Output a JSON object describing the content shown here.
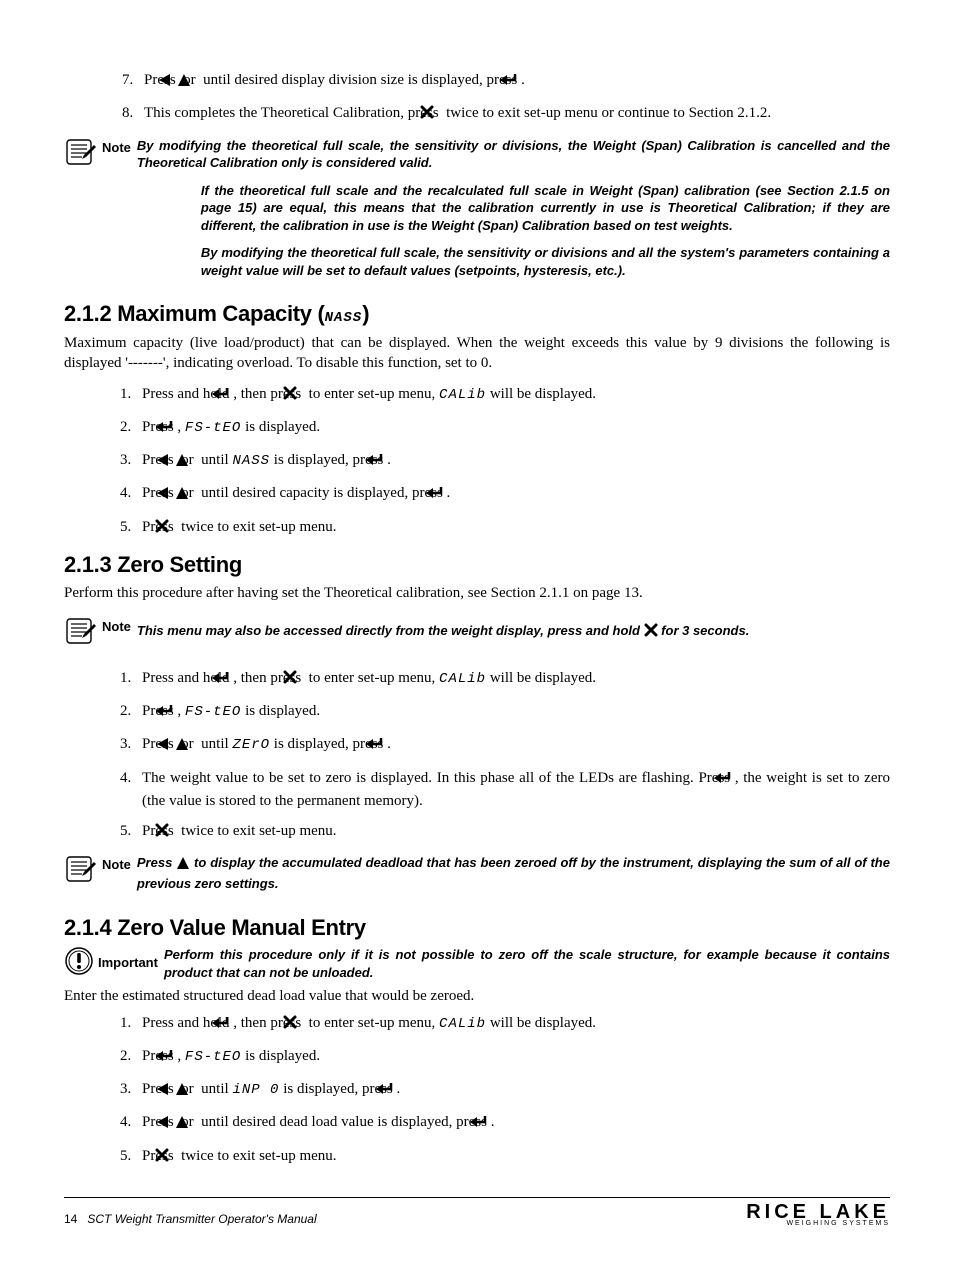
{
  "top_steps": [
    {
      "num": "7.",
      "parts": [
        "Press ",
        {
          "icon": "left"
        },
        " or ",
        {
          "icon": "up"
        },
        " until desired display division size is displayed, press ",
        {
          "icon": "enter"
        },
        "."
      ]
    },
    {
      "num": "8.",
      "parts": [
        "This completes the Theoretical Calibration, press ",
        {
          "icon": "x"
        },
        " twice to exit set-up menu or continue to Section 2.1.2."
      ]
    }
  ],
  "top_note_label": "Note",
  "top_note_paras": [
    "By modifying the theoretical full scale, the sensitivity or divisions,  the Weight (Span) Calibration is cancelled and the Theoretical Calibration only is considered valid.",
    "If the theoretical full scale and the recalculated full scale in Weight (Span) calibration (see Section 2.1.5 on page 15) are equal, this means that the calibration currently in use is Theoretical Calibration; if they are different, the calibration in use is the Weight (Span) Calibration based on test weights.",
    "By modifying the theoretical full scale, the sensitivity or divisions and all the system's parameters containing a weight value will be set to default values (setpoints, hysteresis, etc.)."
  ],
  "s212_heading_parts": [
    "2.1.2  Maximum Capacity (",
    {
      "seg": "NASS"
    },
    ")"
  ],
  "s212_body": "Maximum capacity (live load/product) that can be displayed. When the weight exceeds this value by 9 divisions the following is displayed '-------', indicating overload. To disable this function, set to 0.",
  "s212_steps": [
    {
      "num": "1.",
      "parts": [
        "Press and hold ",
        {
          "icon": "enter"
        },
        ", then press ",
        {
          "icon": "x"
        },
        " to enter set-up menu, ",
        {
          "seg": "CALib"
        },
        " will be displayed."
      ]
    },
    {
      "num": "2.",
      "parts": [
        "Press ",
        {
          "icon": "enter"
        },
        ", ",
        {
          "seg": "FS-tEO"
        },
        " is displayed."
      ]
    },
    {
      "num": "3.",
      "parts": [
        "Press ",
        {
          "icon": "left"
        },
        " or ",
        {
          "icon": "up"
        },
        " until ",
        {
          "seg": "NASS"
        },
        " is displayed, press ",
        {
          "icon": "enter"
        },
        "."
      ]
    },
    {
      "num": "4.",
      "parts": [
        "Press ",
        {
          "icon": "left"
        },
        " or ",
        {
          "icon": "up"
        },
        " until desired capacity is displayed, press ",
        {
          "icon": "enter"
        },
        "."
      ]
    },
    {
      "num": "5.",
      "parts": [
        "Press ",
        {
          "icon": "x"
        },
        " twice to exit set-up menu."
      ]
    }
  ],
  "s213_heading": "2.1.3  Zero Setting",
  "s213_body": "Perform this procedure after having set the Theoretical calibration, see Section 2.1.1 on page 13.",
  "s213_note1_label": "Note",
  "s213_note1_parts": [
    "This menu may also be accessed directly from the weight display, press and hold ",
    {
      "icon": "x"
    },
    " for 3 seconds."
  ],
  "s213_steps": [
    {
      "num": "1.",
      "parts": [
        "Press and hold ",
        {
          "icon": "enter"
        },
        ", then press ",
        {
          "icon": "x"
        },
        " to enter set-up menu, ",
        {
          "seg": "CALib"
        },
        " will be displayed."
      ]
    },
    {
      "num": "2.",
      "parts": [
        "Press ",
        {
          "icon": "enter"
        },
        ", ",
        {
          "seg": "FS-tEO"
        },
        " is displayed."
      ]
    },
    {
      "num": "3.",
      "parts": [
        "Press ",
        {
          "icon": "left"
        },
        " or ",
        {
          "icon": "up"
        },
        " until ",
        {
          "seg": "ZErO"
        },
        " is displayed, press ",
        {
          "icon": "enter"
        },
        "."
      ]
    },
    {
      "num": "4.",
      "parts": [
        "The weight value to be set to zero is displayed. In this phase all of the LEDs are flashing. Press ",
        {
          "icon": "enter"
        },
        ", the weight is set to zero (the value is stored to the permanent memory)."
      ]
    },
    {
      "num": "5.",
      "parts": [
        "Press ",
        {
          "icon": "x"
        },
        " twice to exit set-up menu."
      ]
    }
  ],
  "s213_note2_label": "Note",
  "s213_note2_parts": [
    "Press ",
    {
      "icon": "up"
    },
    " to display the accumulated deadload that has been zeroed off by the instrument, displaying the sum of all of the previous zero settings."
  ],
  "s214_heading": "2.1.4  Zero Value Manual Entry",
  "s214_imp_label": "Important",
  "s214_imp_body": "Perform this procedure only if it is not possible to zero off the scale structure, for example because it contains product that can not be unloaded.",
  "s214_body": "Enter the estimated structured dead load value that would be zeroed.",
  "s214_steps": [
    {
      "num": "1.",
      "parts": [
        "Press and hold ",
        {
          "icon": "enter"
        },
        ", then press ",
        {
          "icon": "x"
        },
        " to enter set-up menu, ",
        {
          "seg": "CALib"
        },
        " will be displayed."
      ]
    },
    {
      "num": "2.",
      "parts": [
        "Press ",
        {
          "icon": "enter"
        },
        ", ",
        {
          "seg": "FS-tEO"
        },
        " is displayed."
      ]
    },
    {
      "num": "3.",
      "parts": [
        "Press ",
        {
          "icon": "left"
        },
        " or ",
        {
          "icon": "up"
        },
        " until ",
        {
          "seg": "iNP 0"
        },
        " is displayed, press ",
        {
          "icon": "enter"
        },
        "."
      ]
    },
    {
      "num": "4.",
      "parts": [
        "Press ",
        {
          "icon": "left"
        },
        " or ",
        {
          "icon": "up"
        },
        " until desired dead load value is displayed, press ",
        {
          "icon": "enter"
        },
        "."
      ]
    },
    {
      "num": "5.",
      "parts": [
        "Press ",
        {
          "icon": "x"
        },
        " twice to exit set-up menu."
      ]
    }
  ],
  "footer_page": "14",
  "footer_title": "SCT Weight Transmitter  Operator's Manual",
  "logo_main": "RICE LAKE",
  "logo_sub": "WEIGHING SYSTEMS"
}
